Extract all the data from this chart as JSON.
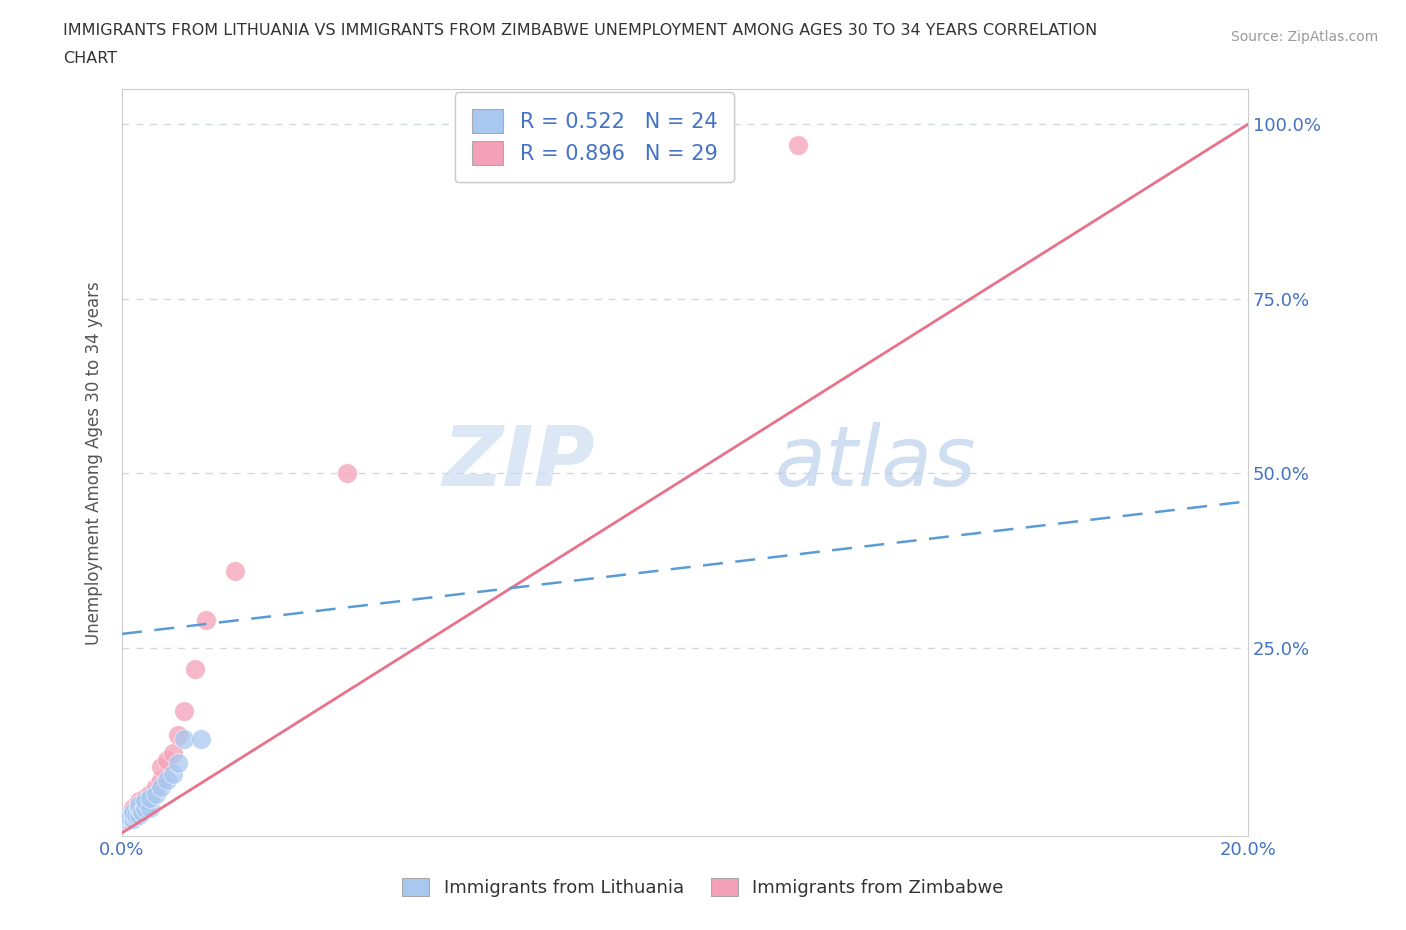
{
  "title": "IMMIGRANTS FROM LITHUANIA VS IMMIGRANTS FROM ZIMBABWE UNEMPLOYMENT AMONG AGES 30 TO 34 YEARS CORRELATION\nCHART",
  "source": "Source: ZipAtlas.com",
  "ylabel": "Unemployment Among Ages 30 to 34 years",
  "xlim": [
    0.0,
    0.2
  ],
  "ylim": [
    -0.02,
    1.05
  ],
  "xticks": [
    0.0,
    0.04,
    0.08,
    0.12,
    0.16,
    0.2
  ],
  "xticklabels": [
    "0.0%",
    "",
    "",
    "",
    "",
    "20.0%"
  ],
  "yticks": [
    0.0,
    0.25,
    0.5,
    0.75,
    1.0
  ],
  "yticklabels": [
    "",
    "25.0%",
    "50.0%",
    "75.0%",
    "100.0%"
  ],
  "lithuania_color": "#a8c8f0",
  "zimbabwe_color": "#f4a0b8",
  "lithuania_line_color": "#5b9bd5",
  "zimbabwe_line_color": "#e8728a",
  "r_lithuania": 0.522,
  "n_lithuania": 24,
  "r_zimbabwe": 0.896,
  "n_zimbabwe": 29,
  "watermark_zip": "ZIP",
  "watermark_atlas": "atlas",
  "background_color": "#ffffff",
  "grid_color": "#d0d8e8",
  "lithuania_scatter_x": [
    0.0005,
    0.0008,
    0.001,
    0.001,
    0.0015,
    0.002,
    0.002,
    0.002,
    0.0025,
    0.003,
    0.003,
    0.003,
    0.0035,
    0.004,
    0.004,
    0.005,
    0.005,
    0.006,
    0.007,
    0.008,
    0.009,
    0.01,
    0.011,
    0.014
  ],
  "lithuania_scatter_y": [
    0.005,
    0.003,
    0.005,
    0.008,
    0.007,
    0.005,
    0.01,
    0.015,
    0.01,
    0.01,
    0.02,
    0.025,
    0.015,
    0.02,
    0.03,
    0.02,
    0.035,
    0.04,
    0.05,
    0.06,
    0.07,
    0.085,
    0.12,
    0.12
  ],
  "zimbabwe_scatter_x": [
    0.0003,
    0.0005,
    0.0008,
    0.001,
    0.001,
    0.0015,
    0.002,
    0.002,
    0.002,
    0.0025,
    0.003,
    0.003,
    0.003,
    0.004,
    0.004,
    0.005,
    0.005,
    0.006,
    0.007,
    0.007,
    0.008,
    0.009,
    0.01,
    0.011,
    0.013,
    0.015,
    0.02,
    0.04,
    0.12
  ],
  "zimbabwe_scatter_y": [
    0.002,
    0.005,
    0.003,
    0.005,
    0.01,
    0.008,
    0.01,
    0.015,
    0.02,
    0.015,
    0.02,
    0.025,
    0.03,
    0.025,
    0.035,
    0.035,
    0.04,
    0.05,
    0.06,
    0.08,
    0.09,
    0.1,
    0.125,
    0.16,
    0.22,
    0.29,
    0.36,
    0.5,
    0.97
  ],
  "zimb_line_x0": 0.0,
  "zimb_line_y0": -0.015,
  "zimb_line_x1": 0.2,
  "zimb_line_y1": 1.0,
  "lith_line_x0": 0.0,
  "lith_line_y0": 0.27,
  "lith_line_x1": 0.2,
  "lith_line_y1": 0.46
}
